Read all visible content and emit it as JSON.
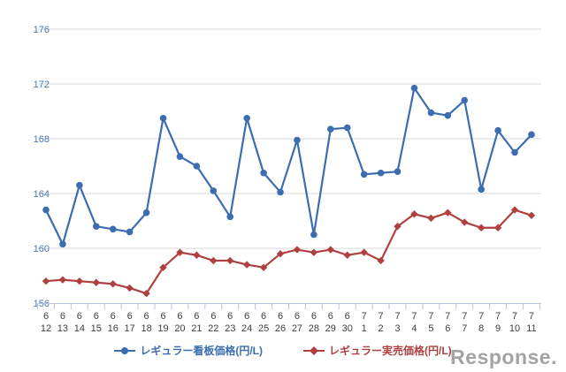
{
  "chart_data": {
    "type": "line",
    "title": "",
    "xlabel": "",
    "ylabel": "",
    "unit": "円/L",
    "ylim": [
      156,
      176
    ],
    "ytick_step": 4,
    "yticks": [
      156,
      160,
      164,
      168,
      172,
      176
    ],
    "grid": true,
    "legend_position": "bottom",
    "x": [
      "6/12",
      "6/13",
      "6/14",
      "6/15",
      "6/16",
      "6/17",
      "6/18",
      "6/19",
      "6/20",
      "6/21",
      "6/22",
      "6/23",
      "6/24",
      "6/25",
      "6/26",
      "6/27",
      "6/28",
      "6/29",
      "6/30",
      "7/1",
      "7/2",
      "7/3",
      "7/4",
      "7/5",
      "7/6",
      "7/7",
      "7/8",
      "7/9",
      "7/10",
      "7/11"
    ],
    "series": [
      {
        "name": "レギュラー看板価格(円/L)",
        "marker": "circle",
        "color": "#3b6db0",
        "values": [
          162.8,
          160.3,
          164.6,
          161.6,
          161.4,
          161.2,
          162.6,
          169.5,
          166.7,
          166.0,
          164.2,
          162.3,
          169.5,
          165.5,
          164.1,
          167.9,
          161.0,
          168.7,
          168.8,
          165.4,
          165.5,
          165.6,
          171.7,
          169.9,
          169.7,
          170.8,
          164.3,
          168.6,
          167.0,
          168.3
        ]
      },
      {
        "name": "レギュラー実売価格(円/L)",
        "marker": "diamond",
        "color": "#b04040",
        "values": [
          157.6,
          157.7,
          157.6,
          157.5,
          157.4,
          157.1,
          156.7,
          158.6,
          159.7,
          159.5,
          159.1,
          159.1,
          158.8,
          158.6,
          159.6,
          159.9,
          159.7,
          159.9,
          159.5,
          159.7,
          159.1,
          161.6,
          162.5,
          162.2,
          162.6,
          161.9,
          161.5,
          161.5,
          162.8,
          162.4
        ]
      }
    ],
    "colors": {
      "grid": "#d9d9d9",
      "axis": "#b3c6de",
      "y_tick_label": "#4a79b0",
      "x_tick_label": "#404040",
      "background": "#ffffff",
      "watermark": "#a3a3a3"
    }
  },
  "watermark": {
    "text": "Response."
  }
}
